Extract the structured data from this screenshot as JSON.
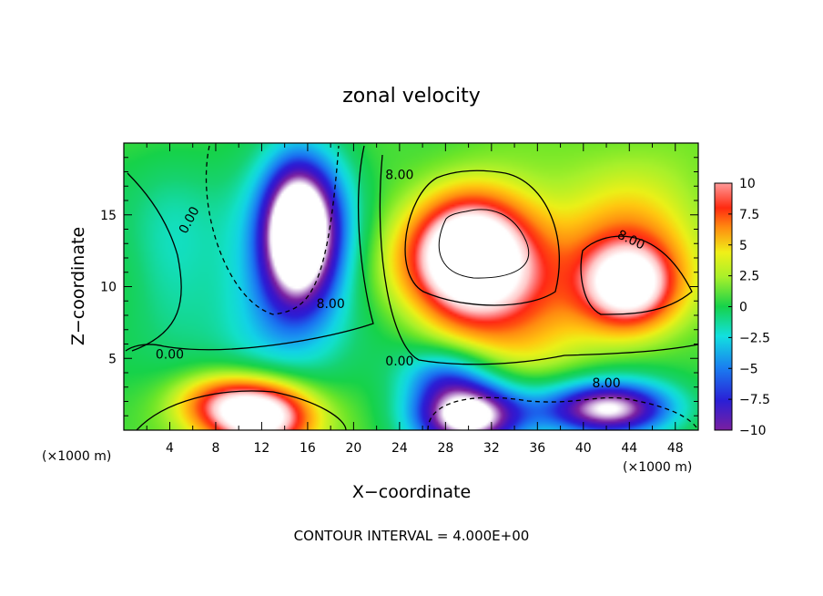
{
  "chart_data": {
    "type": "heatmap",
    "title": "zonal velocity",
    "xlabel": "X−coordinate",
    "ylabel": "Z−coordinate",
    "x_unit": "(×1000 m)",
    "xlim": [
      0,
      50
    ],
    "ylim": [
      0,
      20
    ],
    "x_ticks": [
      "4",
      "8",
      "12",
      "16",
      "20",
      "24",
      "28",
      "32",
      "36",
      "40",
      "44",
      "48"
    ],
    "y_ticks": [
      "5",
      "10",
      "15"
    ],
    "colorbar": {
      "range": [
        -10,
        10
      ],
      "ticks": [
        "10",
        "7.5",
        "5",
        "2.5",
        "0",
        "−2.5",
        "−5",
        "−7.5",
        "−10"
      ]
    },
    "contour_labels": [
      "0.00",
      "0.00",
      "0.00",
      "8.00",
      "8.00",
      "8.00",
      "8.00"
    ],
    "contour_interval": 4,
    "features": [
      {
        "x": 15,
        "z": 14,
        "value": -12,
        "note": "strong negative core"
      },
      {
        "x": 30,
        "z": 12,
        "value": 13,
        "note": "strong positive core"
      },
      {
        "x": 44,
        "z": 10,
        "value": 11,
        "note": "positive core"
      },
      {
        "x": 12,
        "z": 1,
        "value": 12,
        "note": "positive core near surface"
      },
      {
        "x": 30,
        "z": 1,
        "value": -14,
        "note": "negative core near surface"
      },
      {
        "x": 45,
        "z": 1,
        "value": -12,
        "note": "negative core near surface"
      }
    ]
  },
  "footer": "CONTOUR INTERVAL = 4.000E+00"
}
